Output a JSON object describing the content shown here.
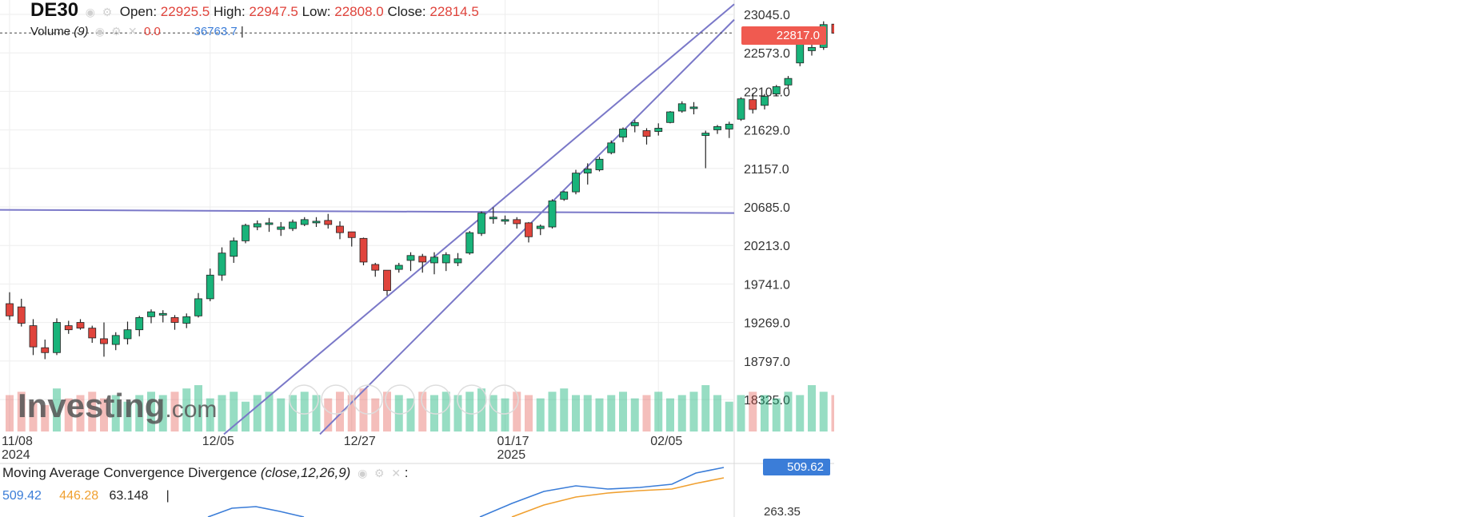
{
  "header": {
    "symbol": "DE30",
    "open_label": "Open:",
    "open_value": "22925.5",
    "high_label": "High:",
    "high_value": "22947.5",
    "low_label": "Low:",
    "low_value": "22808.0",
    "close_label": "Close:",
    "close_value": "22814.5"
  },
  "volume_legend": {
    "label": "Volume",
    "param": "(9)",
    "value_a": "0.0",
    "value_b": "36763.7"
  },
  "price_tag": {
    "value": "22817.0",
    "color": "#f05a50"
  },
  "watermark": {
    "brand": "Investing",
    "suffix": ".com"
  },
  "macd": {
    "title": "Moving Average Convergence Divergence",
    "params": "(close,12,26,9)",
    "macd_value": "509.42",
    "signal_value": "446.28",
    "hist_value": "63.148",
    "tag_value": "509.62",
    "axis_tick": "263.35",
    "macd_color": "#3b7dd8",
    "signal_color": "#f0a030"
  },
  "colors": {
    "up": "#19b37a",
    "down": "#e0443c",
    "trendline": "#7a78c8"
  },
  "chart_data": {
    "type": "candlestick",
    "symbol": "DE30",
    "y_ticks": [
      "23045.0",
      "22573.0",
      "22101.0",
      "21629.0",
      "21157.0",
      "20685.0",
      "20213.0",
      "19741.0",
      "19269.0",
      "18797.0",
      "18325.0"
    ],
    "x_ticks": [
      {
        "label": "11/08",
        "sub": "2024",
        "index": 0
      },
      {
        "label": "12/05",
        "sub": "",
        "index": 17
      },
      {
        "label": "12/27",
        "sub": "",
        "index": 29
      },
      {
        "label": "01/17",
        "sub": "2025",
        "index": 42
      },
      {
        "label": "02/05",
        "sub": "",
        "index": 55
      }
    ],
    "ylim": [
      18150,
      23200
    ],
    "last_price": 22817.0,
    "horizontal_line": 20640,
    "candles": [
      [
        19500,
        19640,
        19300,
        19350
      ],
      [
        19460,
        19560,
        19220,
        19260
      ],
      [
        19230,
        19310,
        18870,
        18970
      ],
      [
        18960,
        19060,
        18820,
        18900
      ],
      [
        18900,
        19320,
        18870,
        19270
      ],
      [
        19230,
        19290,
        19130,
        19180
      ],
      [
        19270,
        19310,
        19180,
        19200
      ],
      [
        19200,
        19230,
        19020,
        19080
      ],
      [
        19070,
        19270,
        18850,
        19010
      ],
      [
        19000,
        19150,
        18930,
        19110
      ],
      [
        19070,
        19280,
        19000,
        19180
      ],
      [
        19180,
        19350,
        19100,
        19330
      ],
      [
        19340,
        19430,
        19260,
        19400
      ],
      [
        19360,
        19420,
        19270,
        19380
      ],
      [
        19330,
        19360,
        19180,
        19270
      ],
      [
        19260,
        19380,
        19200,
        19340
      ],
      [
        19350,
        19630,
        19330,
        19560
      ],
      [
        19560,
        19930,
        19530,
        19850
      ],
      [
        19850,
        20190,
        19780,
        20120
      ],
      [
        20080,
        20310,
        20000,
        20270
      ],
      [
        20270,
        20480,
        20240,
        20460
      ],
      [
        20440,
        20520,
        20400,
        20480
      ],
      [
        20470,
        20550,
        20380,
        20490
      ],
      [
        20410,
        20500,
        20330,
        20440
      ],
      [
        20420,
        20530,
        20390,
        20500
      ],
      [
        20470,
        20560,
        20450,
        20530
      ],
      [
        20490,
        20560,
        20440,
        20510
      ],
      [
        20520,
        20600,
        20420,
        20470
      ],
      [
        20450,
        20510,
        20290,
        20370
      ],
      [
        20380,
        20380,
        20200,
        20310
      ],
      [
        20300,
        20310,
        19970,
        20010
      ],
      [
        19980,
        20000,
        19830,
        19910
      ],
      [
        19910,
        19910,
        19600,
        19660
      ],
      [
        19920,
        20000,
        19880,
        19970
      ],
      [
        20030,
        20130,
        19900,
        20090
      ],
      [
        20080,
        20110,
        19880,
        20010
      ],
      [
        20000,
        20130,
        19860,
        20070
      ],
      [
        20000,
        20130,
        19900,
        20100
      ],
      [
        20000,
        20120,
        19960,
        20050
      ],
      [
        20120,
        20390,
        20100,
        20370
      ],
      [
        20360,
        20630,
        20330,
        20610
      ],
      [
        20540,
        20680,
        20480,
        20560
      ],
      [
        20520,
        20580,
        20470,
        20530
      ],
      [
        20530,
        20560,
        20420,
        20480
      ],
      [
        20490,
        20500,
        20250,
        20320
      ],
      [
        20420,
        20470,
        20340,
        20450
      ],
      [
        20440,
        20780,
        20420,
        20760
      ],
      [
        20780,
        20880,
        20760,
        20870
      ],
      [
        20870,
        21140,
        20840,
        21100
      ],
      [
        21100,
        21220,
        20960,
        21150
      ],
      [
        21140,
        21300,
        21120,
        21270
      ],
      [
        21350,
        21500,
        21330,
        21470
      ],
      [
        21540,
        21660,
        21480,
        21640
      ],
      [
        21680,
        21750,
        21600,
        21720
      ],
      [
        21620,
        21650,
        21450,
        21550
      ],
      [
        21610,
        21710,
        21560,
        21650
      ],
      [
        21720,
        21860,
        21710,
        21850
      ],
      [
        21860,
        21980,
        21840,
        21950
      ],
      [
        21900,
        21970,
        21820,
        21910
      ],
      [
        21560,
        21620,
        21160,
        21590
      ],
      [
        21630,
        21690,
        21580,
        21670
      ],
      [
        21640,
        21730,
        21530,
        21700
      ],
      [
        21760,
        22030,
        21740,
        22010
      ],
      [
        22000,
        22080,
        21830,
        21880
      ],
      [
        21930,
        22070,
        21880,
        22040
      ],
      [
        22070,
        22180,
        22040,
        22160
      ],
      [
        22180,
        22290,
        22140,
        22260
      ],
      [
        22450,
        22800,
        22410,
        22720
      ],
      [
        22600,
        22700,
        22540,
        22640
      ],
      [
        22640,
        22960,
        22610,
        22920
      ],
      [
        22925.5,
        22947.5,
        22808.0,
        22814.5
      ]
    ],
    "volume": [
      55,
      60,
      45,
      40,
      65,
      50,
      55,
      60,
      50,
      55,
      45,
      55,
      60,
      55,
      60,
      65,
      70,
      50,
      55,
      60,
      45,
      55,
      60,
      50,
      55,
      60,
      55,
      50,
      60,
      55,
      65,
      50,
      60,
      55,
      50,
      60,
      55,
      60,
      55,
      60,
      65,
      55,
      50,
      60,
      55,
      50,
      60,
      65,
      55,
      55,
      50,
      55,
      60,
      50,
      55,
      60,
      50,
      55,
      60,
      70,
      55,
      45,
      55,
      60,
      55,
      50,
      60,
      55,
      70,
      60,
      55
    ]
  }
}
